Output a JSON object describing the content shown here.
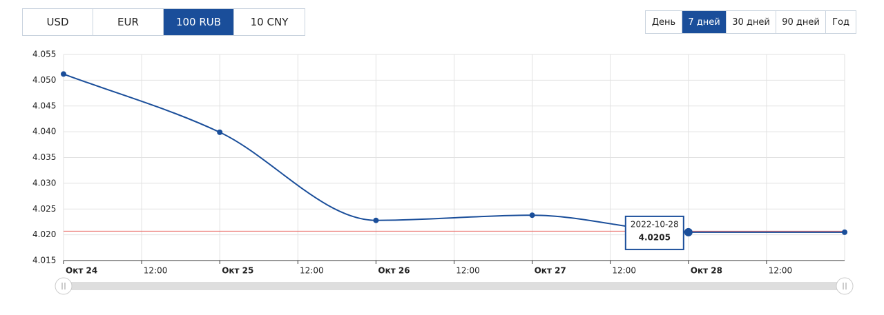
{
  "currencies": [
    "USD",
    "EUR",
    "100 RUB",
    "10 CNY"
  ],
  "active_currency": 2,
  "periods": [
    "День",
    "7 дней",
    "30 дней",
    "90 дней",
    "Год"
  ],
  "active_period": 1,
  "chart_data": {
    "type": "line",
    "x": [
      0,
      24,
      48,
      72,
      96,
      120
    ],
    "xlim": [
      0,
      120
    ],
    "xticks": [
      {
        "value": 0,
        "label": "Окт 24"
      },
      {
        "value": 12,
        "label": "12:00"
      },
      {
        "value": 24,
        "label": "Окт 25"
      },
      {
        "value": 36,
        "label": "12:00"
      },
      {
        "value": 48,
        "label": "Окт 26"
      },
      {
        "value": 60,
        "label": "12:00"
      },
      {
        "value": 72,
        "label": "Окт 27"
      },
      {
        "value": 84,
        "label": "12:00"
      },
      {
        "value": 96,
        "label": "Окт 28"
      },
      {
        "value": 108,
        "label": "12:00"
      }
    ],
    "series": [
      {
        "color": "#1a4e9a",
        "values": [
          4.0512,
          4.0399,
          4.0228,
          4.0238,
          4.0205,
          4.0205
        ]
      }
    ],
    "ylim": [
      4.015,
      4.055
    ],
    "yticks": [
      {
        "value": 4.015,
        "label": "4.015"
      },
      {
        "value": 4.02,
        "label": "4.020"
      },
      {
        "value": 4.025,
        "label": "4.025"
      },
      {
        "value": 4.03,
        "label": "4.030"
      },
      {
        "value": 4.035,
        "label": "4.035"
      },
      {
        "value": 4.04,
        "label": "4.040"
      },
      {
        "value": 4.045,
        "label": "4.045"
      },
      {
        "value": 4.05,
        "label": "4.050"
      },
      {
        "value": 4.055,
        "label": "4.055"
      }
    ],
    "grid": true,
    "reference_line": {
      "value": 4.0207,
      "color": "#e8605c"
    },
    "tooltip": {
      "label": "2022-10-28",
      "value": 4.0205,
      "point": 4
    }
  }
}
